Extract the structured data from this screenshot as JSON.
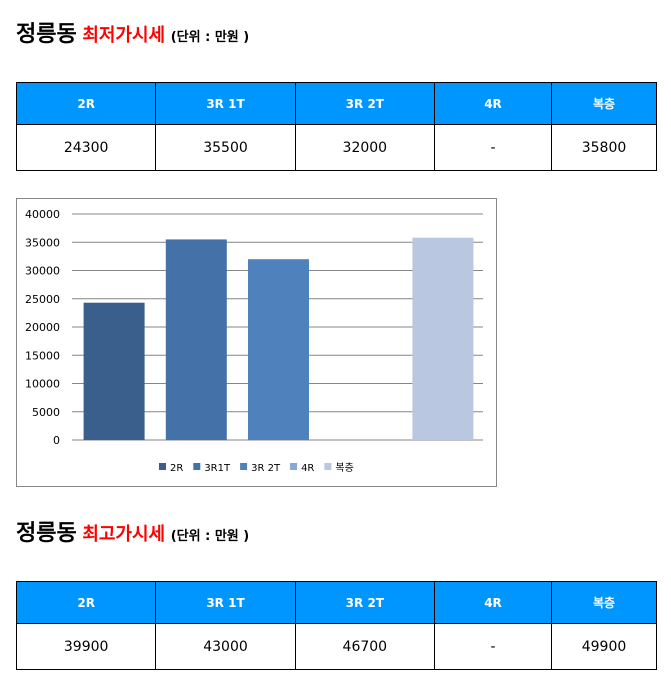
{
  "sections": [
    {
      "place": "정릉동",
      "label": "최저가시세",
      "unit": "(단위 : 만원 )",
      "headers": [
        "2R",
        "3R 1T",
        "3R 2T",
        "4R",
        "복층"
      ],
      "values": [
        "24300",
        "35500",
        "32000",
        "-",
        "35800"
      ]
    },
    {
      "place": "정릉동",
      "label": "최고가시세",
      "unit": "(단위 : 만원 )",
      "headers": [
        "2R",
        "3R 1T",
        "3R 2T",
        "4R",
        "복층"
      ],
      "values": [
        "39900",
        "43000",
        "46700",
        "-",
        "49900"
      ]
    }
  ],
  "chart_data": {
    "type": "bar",
    "title": "",
    "categories": [
      "2R",
      "3R1T",
      "3R 2T",
      "4R",
      "복층"
    ],
    "values": [
      24300,
      35500,
      32000,
      null,
      35800
    ],
    "colors": [
      "#3a5f8c",
      "#4472a8",
      "#4f81bd",
      "#8aa8d4",
      "#b9c8e0"
    ],
    "ylim": [
      0,
      40000
    ],
    "yticks": [
      "0",
      "5000",
      "10000",
      "15000",
      "20000",
      "25000",
      "30000",
      "35000",
      "40000"
    ],
    "grid": true,
    "legend": "bottom"
  }
}
